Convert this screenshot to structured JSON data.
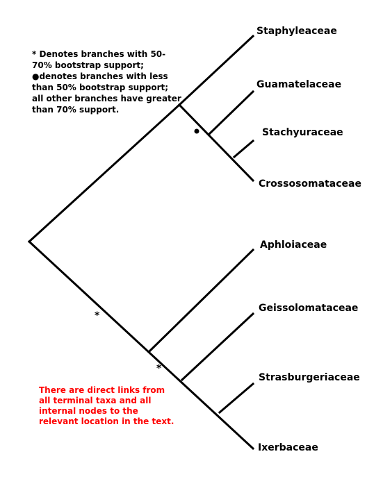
{
  "legend": {
    "line1": "* Denotes branches with 50-70% bootstrap support;",
    "line2": "●denotes branches with less than 50% bootstrap support; all other branches have greater than 70% support."
  },
  "note": {
    "text": "There are direct links from all terminal taxa and all internal nodes to the relevant location in the text.",
    "color": "#ff0000"
  },
  "taxa": [
    "Staphyleaceae",
    "Guamatelaceae",
    "Stachyuraceae",
    "Crossosomataceae",
    "Aphloiaceae",
    "Geissolomataceae",
    "Strasburgeriaceae",
    "Ixerbaceae"
  ],
  "support_markers": {
    "asterisk": "*",
    "dot": "●"
  }
}
